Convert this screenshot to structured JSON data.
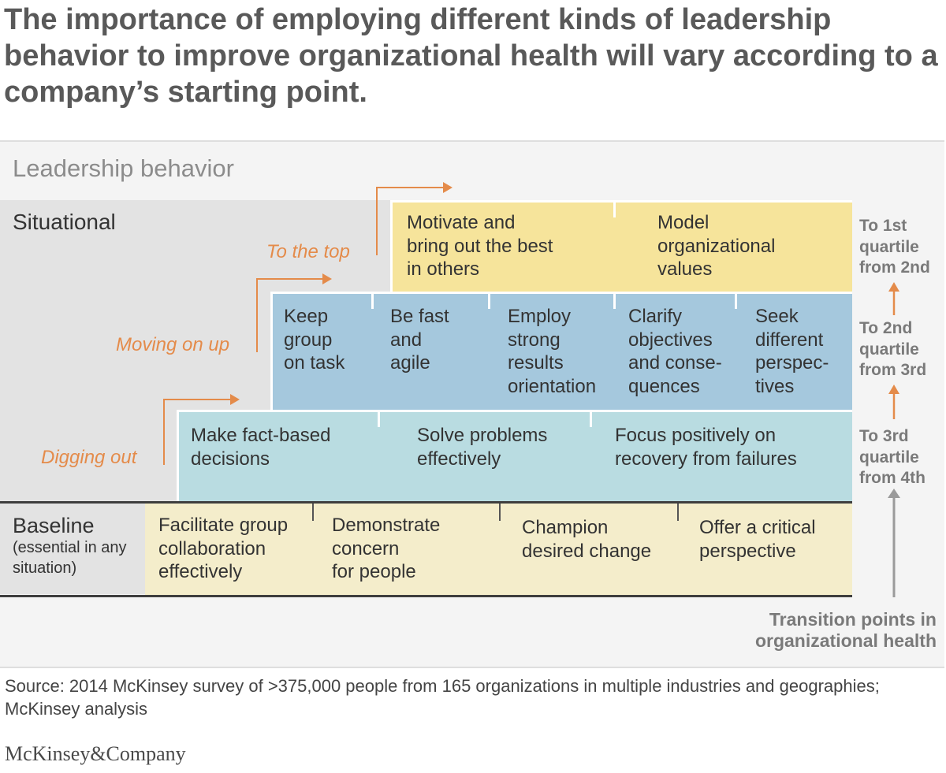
{
  "title": "The importance of employing different kinds of leadership behavior to improve organizational health will vary according to a company’s starting point.",
  "section_heading": "Leadership behavior",
  "levels": {
    "situational": "Situational",
    "baseline": "Baseline",
    "baseline_sub": "(essential in any situation)"
  },
  "stages": {
    "digging_out": "Digging out",
    "moving_on_up": "Moving on up",
    "to_the_top": "To the top"
  },
  "bands": {
    "top": [
      {
        "l1": "Motivate and",
        "l2": "bring out the best",
        "l3": "in others"
      },
      {
        "l1": "Model",
        "l2": "organizational",
        "l3": "values"
      }
    ],
    "middle": [
      {
        "l1": "Keep",
        "l2": "group",
        "l3": "on task",
        "l4": ""
      },
      {
        "l1": "Be fast",
        "l2": "and",
        "l3": "agile",
        "l4": ""
      },
      {
        "l1": "Employ",
        "l2": "strong",
        "l3": "results",
        "l4": "orientation"
      },
      {
        "l1": "Clarify",
        "l2": "objectives",
        "l3": "and conse-",
        "l4": "quences"
      },
      {
        "l1": "Seek",
        "l2": "different",
        "l3": "perspec-",
        "l4": "tives"
      }
    ],
    "lower": [
      {
        "l1": "Make fact-based",
        "l2": "decisions"
      },
      {
        "l1": "Solve problems",
        "l2": "effectively"
      },
      {
        "l1": "Focus positively on",
        "l2": "recovery from failures"
      }
    ],
    "baseline": [
      {
        "l1": "Facilitate group",
        "l2": "collaboration",
        "l3": "effectively"
      },
      {
        "l1": "Demonstrate",
        "l2": "concern",
        "l3": "for people"
      },
      {
        "l1": "Champion",
        "l2": "desired change",
        "l3": ""
      },
      {
        "l1": "Offer a critical",
        "l2": "perspective",
        "l3": ""
      }
    ]
  },
  "quartiles": [
    {
      "l1": "To 1st",
      "l2": "quartile",
      "l3": "from 2nd"
    },
    {
      "l1": "To 2nd",
      "l2": "quartile",
      "l3": "from 3rd"
    },
    {
      "l1": "To 3rd",
      "l2": "quartile",
      "l3": "from 4th"
    }
  ],
  "transition_label": {
    "l1": "Transition points in",
    "l2": "organizational health"
  },
  "source": "Source: 2014 McKinsey survey of >375,000 people from 165 organizations in multiple industries and geographies; McKinsey analysis",
  "logo": "McKinsey&Company",
  "colors": {
    "top_band": "#f6e49b",
    "middle_band": "#a5c8dd",
    "lower_band": "#b9dce1",
    "baseline_band": "#f4edcb",
    "accent_orange": "#e48b4a",
    "quartile_gray": "#7a7a7a"
  }
}
